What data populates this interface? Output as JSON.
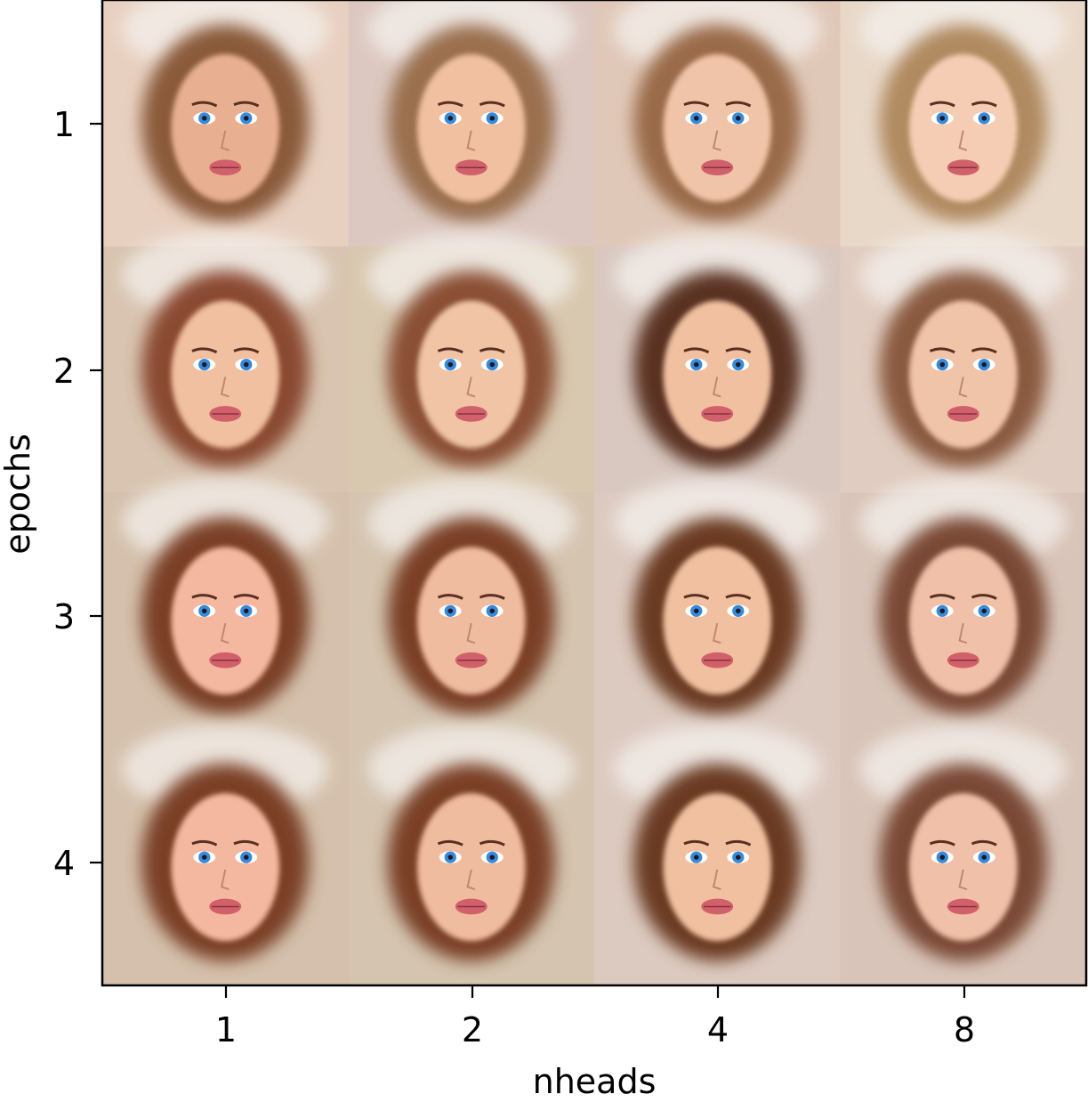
{
  "chart_data": {
    "type": "image-grid",
    "xlabel": "nheads",
    "ylabel": "epochs",
    "x_ticks": [
      "1",
      "2",
      "4",
      "8"
    ],
    "y_ticks": [
      "1",
      "2",
      "3",
      "4"
    ],
    "grid": false,
    "cells": [
      {
        "epochs": "1",
        "nheads": "1",
        "content": "face-portrait",
        "hair": "#8a5a3a",
        "bg": "#e8d0c0",
        "skin": "#e8b090"
      },
      {
        "epochs": "1",
        "nheads": "2",
        "content": "face-portrait",
        "hair": "#9a7050",
        "bg": "#dcc8c0",
        "skin": "#f0c0a0"
      },
      {
        "epochs": "1",
        "nheads": "4",
        "content": "face-portrait",
        "hair": "#9a6a48",
        "bg": "#e0c8b8",
        "skin": "#f0c4a8"
      },
      {
        "epochs": "1",
        "nheads": "8",
        "content": "face-portrait",
        "hair": "#b08a60",
        "bg": "#e8d8c8",
        "skin": "#f4cdb4"
      },
      {
        "epochs": "2",
        "nheads": "1",
        "content": "face-portrait",
        "hair": "#8a4a30",
        "bg": "#d8c4b0",
        "skin": "#f0c0a0"
      },
      {
        "epochs": "2",
        "nheads": "2",
        "content": "face-portrait",
        "hair": "#8a5034",
        "bg": "#d8c8b0",
        "skin": "#f0c4a4"
      },
      {
        "epochs": "2",
        "nheads": "4",
        "content": "face-portrait",
        "hair": "#5a3020",
        "bg": "#d8c8c0",
        "skin": "#f0c0a0"
      },
      {
        "epochs": "2",
        "nheads": "8",
        "content": "face-portrait",
        "hair": "#8a5a40",
        "bg": "#e0ccc0",
        "skin": "#f0c4a8"
      },
      {
        "epochs": "3",
        "nheads": "1",
        "content": "face-portrait",
        "hair": "#7a4028",
        "bg": "#d4c0ac",
        "skin": "#f4b8a0"
      },
      {
        "epochs": "3",
        "nheads": "2",
        "content": "face-portrait",
        "hair": "#7a4028",
        "bg": "#d4c4b0",
        "skin": "#f0bca0"
      },
      {
        "epochs": "3",
        "nheads": "4",
        "content": "face-portrait",
        "hair": "#6a3a24",
        "bg": "#dccac0",
        "skin": "#f0c0a0"
      },
      {
        "epochs": "3",
        "nheads": "8",
        "content": "face-portrait",
        "hair": "#7a4a34",
        "bg": "#d8c4b8",
        "skin": "#f0c0a8"
      },
      {
        "epochs": "4",
        "nheads": "1",
        "content": "face-portrait",
        "hair": "#7a4028",
        "bg": "#d4c0ac",
        "skin": "#f4b8a0"
      },
      {
        "epochs": "4",
        "nheads": "2",
        "content": "face-portrait",
        "hair": "#7a4028",
        "bg": "#d4c4b0",
        "skin": "#f0bca0"
      },
      {
        "epochs": "4",
        "nheads": "4",
        "content": "face-portrait",
        "hair": "#6a3a24",
        "bg": "#dccac0",
        "skin": "#f0c0a0"
      },
      {
        "epochs": "4",
        "nheads": "8",
        "content": "face-portrait",
        "hair": "#7a4a34",
        "bg": "#d8c4b8",
        "skin": "#f0c0a8"
      }
    ],
    "eye_color": "#3a8ad8",
    "lip_color": "#d0606a"
  }
}
